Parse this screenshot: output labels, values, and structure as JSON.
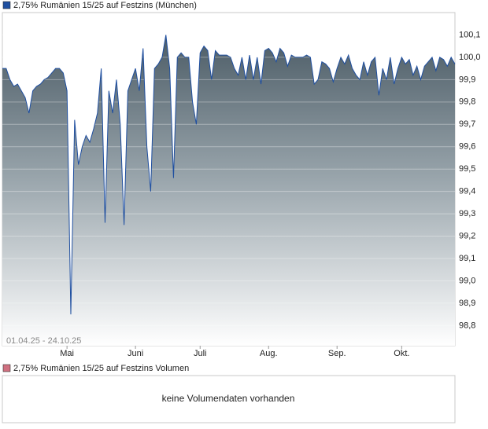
{
  "chart_data": [
    {
      "type": "area",
      "title": "2,75% Rumänien 15/25 auf Festzins (München)",
      "date_range": "01.04.25 - 24.10.25",
      "color": "#1f4fa0",
      "categories": [
        null,
        null,
        null,
        null,
        null,
        null,
        null,
        null,
        null,
        null,
        null,
        null,
        null,
        null,
        null,
        null,
        null,
        "Mai",
        null,
        null,
        null,
        null,
        null,
        null,
        null,
        null,
        null,
        null,
        null,
        null,
        null,
        null,
        null,
        null,
        null,
        "Juni",
        null,
        null,
        null,
        null,
        null,
        null,
        null,
        null,
        null,
        null,
        null,
        null,
        null,
        null,
        null,
        null,
        "Juli",
        null,
        null,
        null,
        null,
        null,
        null,
        null,
        null,
        null,
        null,
        null,
        null,
        null,
        null,
        null,
        null,
        null,
        "Aug.",
        null,
        null,
        null,
        null,
        null,
        null,
        null,
        null,
        null,
        null,
        null,
        null,
        null,
        null,
        null,
        null,
        null,
        "Sep.",
        null,
        null,
        null,
        null,
        null,
        null,
        null,
        null,
        null,
        null,
        null,
        null,
        null,
        null,
        null,
        null,
        "Okt.",
        null,
        null,
        null,
        null,
        null,
        null,
        null,
        null,
        null,
        null,
        null,
        null,
        null,
        null
      ],
      "values": [
        99.95,
        99.95,
        99.9,
        99.87,
        99.88,
        99.85,
        99.82,
        99.75,
        99.85,
        99.87,
        99.88,
        99.9,
        99.91,
        99.93,
        99.95,
        99.95,
        99.93,
        99.85,
        98.85,
        99.72,
        99.52,
        99.6,
        99.65,
        99.62,
        99.68,
        99.75,
        99.95,
        99.26,
        99.85,
        99.75,
        99.9,
        99.7,
        99.25,
        99.85,
        99.9,
        99.95,
        99.85,
        100.04,
        99.6,
        99.4,
        99.95,
        99.97,
        100.0,
        100.1,
        99.95,
        99.46,
        100.0,
        100.02,
        100.0,
        100.0,
        99.8,
        99.7,
        100.02,
        100.05,
        100.03,
        99.9,
        100.03,
        100.01,
        100.01,
        100.01,
        100.0,
        99.95,
        99.92,
        100.0,
        99.9,
        100.01,
        99.9,
        100.0,
        99.88,
        100.03,
        100.04,
        100.02,
        99.98,
        100.04,
        100.02,
        99.96,
        100.01,
        100.0,
        100.0,
        100.0,
        100.01,
        100.0,
        99.88,
        99.9,
        99.98,
        99.97,
        99.95,
        99.89,
        99.95,
        100.0,
        99.97,
        100.01,
        99.95,
        99.92,
        99.9,
        99.98,
        99.92,
        99.98,
        100.0,
        99.83,
        99.95,
        99.9,
        100.0,
        99.88,
        99.95,
        100.0,
        99.97,
        99.99,
        99.92,
        99.96,
        99.9,
        99.96,
        99.98,
        100.0,
        99.94,
        100.0,
        99.99,
        99.96,
        100.0,
        99.97
      ],
      "ylim": [
        98.71,
        100.2
      ],
      "yticks": [
        {
          "value": 98.8,
          "label": "98,8"
        },
        {
          "value": 98.9,
          "label": "98,9"
        },
        {
          "value": 99.0,
          "label": "99,0"
        },
        {
          "value": 99.1,
          "label": "99,1"
        },
        {
          "value": 99.2,
          "label": "99,2"
        },
        {
          "value": 99.3,
          "label": "99,3"
        },
        {
          "value": 99.4,
          "label": "99,4"
        },
        {
          "value": 99.5,
          "label": "99,5"
        },
        {
          "value": 99.6,
          "label": "99,6"
        },
        {
          "value": 99.7,
          "label": "99,7"
        },
        {
          "value": 99.8,
          "label": "99,8"
        },
        {
          "value": 99.9,
          "label": "99,9"
        },
        {
          "value": 100.0,
          "label": "100,0"
        },
        {
          "value": 100.1,
          "label": "100,1"
        }
      ],
      "grid": true
    },
    {
      "type": "volume",
      "title": "2,75% Rumänien 15/25 auf Festzins Volumen",
      "color": "#d07080",
      "message": "keine Volumendaten vorhanden"
    }
  ]
}
